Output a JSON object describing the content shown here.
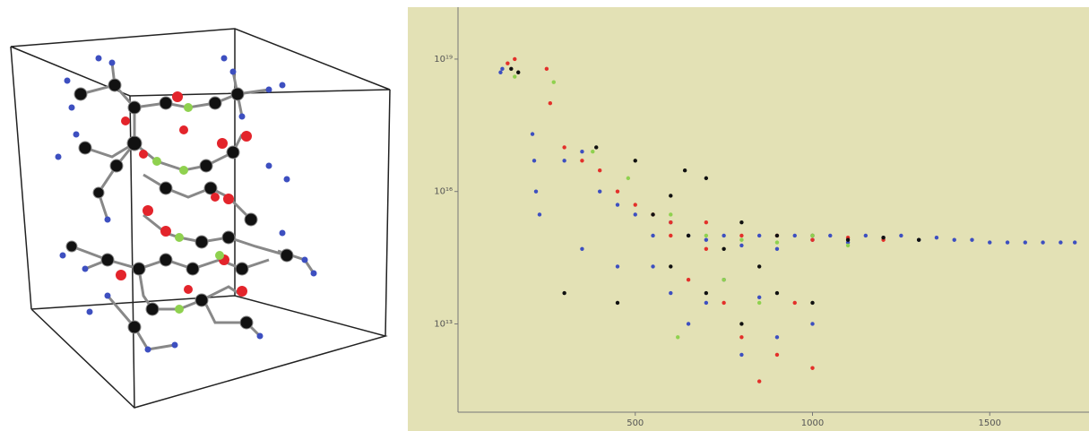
{
  "chart_data": {
    "type": "scatter",
    "xlim": [
      0,
      1780
    ],
    "xticks": [
      500,
      1000,
      1500
    ],
    "ylim": [
      100000000000.0,
      1.5e+20
    ],
    "log_y": true,
    "yticks": [
      {
        "value": 10000000000000.0,
        "label": "10¹³"
      },
      {
        "value": 1e+16,
        "label": "10¹⁶"
      },
      {
        "value": 1e+19,
        "label": "10¹⁹"
      }
    ],
    "series": [
      {
        "color": "#3d4fc0",
        "x": [
          120,
          125,
          210,
          215,
          220,
          230,
          300,
          350,
          400,
          450,
          500,
          550,
          600,
          650,
          700,
          750,
          800,
          850,
          900,
          950,
          1000,
          1050,
          1100,
          1150,
          1200,
          1250,
          1300,
          1350,
          1400,
          1450,
          1500,
          1550,
          1600,
          1650,
          1700,
          1740,
          600,
          650,
          700,
          750,
          800,
          900,
          1000,
          550,
          450,
          350,
          850
        ],
        "values": [
          5e+18,
          6e+18,
          2e+17,
          5e+16,
          1e+16,
          3000000000000000.0,
          5e+16,
          8e+16,
          1e+16,
          5000000000000000.0,
          3000000000000000.0,
          1000000000000000.0,
          2000000000000000.0,
          1000000000000000.0,
          800000000000000.0,
          1000000000000000.0,
          600000000000000.0,
          1000000000000000.0,
          500000000000000.0,
          1000000000000000.0,
          800000000000000.0,
          1000000000000000.0,
          700000000000000.0,
          1000000000000000.0,
          900000000000000.0,
          1000000000000000.0,
          800000000000000.0,
          900000000000000.0,
          800000000000000.0,
          800000000000000.0,
          700000000000000.0,
          700000000000000.0,
          700000000000000.0,
          700000000000000.0,
          700000000000000.0,
          700000000000000.0,
          50000000000000.0,
          10000000000000.0,
          30000000000000.0,
          100000000000000.0,
          2000000000000.0,
          5000000000000.0,
          10000000000000.0,
          200000000000000.0,
          200000000000000.0,
          500000000000000.0,
          40000000000000.0
        ]
      },
      {
        "color": "#e3302a",
        "x": [
          140,
          160,
          250,
          260,
          300,
          350,
          400,
          450,
          500,
          550,
          600,
          700,
          800,
          900,
          1000,
          1100,
          1200,
          650,
          750,
          800,
          900,
          1000,
          950,
          850,
          700,
          600
        ],
        "values": [
          8e+18,
          1e+19,
          6e+18,
          1e+18,
          1e+17,
          5e+16,
          3e+16,
          1e+16,
          5000000000000000.0,
          3000000000000000.0,
          2000000000000000.0,
          2000000000000000.0,
          1000000000000000.0,
          1000000000000000.0,
          800000000000000.0,
          900000000000000.0,
          800000000000000.0,
          100000000000000.0,
          30000000000000.0,
          5000000000000.0,
          2000000000000.0,
          1000000000000.0,
          30000000000000.0,
          500000000000.0,
          500000000000000.0,
          1000000000000000.0
        ]
      },
      {
        "color": "#111111",
        "x": [
          150,
          170,
          390,
          500,
          600,
          640,
          700,
          550,
          650,
          750,
          800,
          900,
          1000,
          1100,
          1200,
          1300,
          600,
          700,
          800,
          850,
          450,
          300,
          900,
          1000
        ],
        "values": [
          6e+18,
          5e+18,
          1e+17,
          5e+16,
          8000000000000000.0,
          3e+16,
          2e+16,
          3000000000000000.0,
          1000000000000000.0,
          500000000000000.0,
          2000000000000000.0,
          1000000000000000.0,
          1000000000000000.0,
          800000000000000.0,
          900000000000000.0,
          800000000000000.0,
          200000000000000.0,
          50000000000000.0,
          10000000000000.0,
          200000000000000.0,
          30000000000000.0,
          50000000000000.0,
          50000000000000.0,
          30000000000000.0
        ]
      },
      {
        "color": "#8fd14f",
        "x": [
          160,
          270,
          380,
          480,
          600,
          700,
          800,
          900,
          1000,
          1100,
          750,
          850,
          620
        ],
        "values": [
          4e+18,
          3e+18,
          8e+16,
          2e+16,
          3000000000000000.0,
          1000000000000000.0,
          800000000000000.0,
          700000000000000.0,
          1000000000000000.0,
          600000000000000.0,
          100000000000000.0,
          30000000000000.0,
          5000000000000.0
        ]
      }
    ]
  }
}
